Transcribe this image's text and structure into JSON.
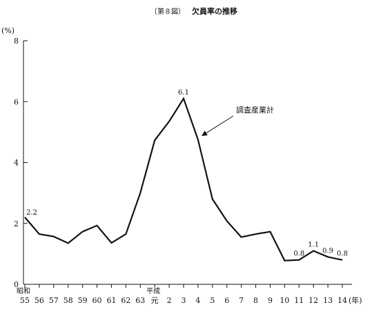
{
  "chart_data": {
    "type": "line",
    "figure_label": "〔第８図〕",
    "title": "欠員率の推移",
    "y_unit": "(%)",
    "x_unit": "(年)",
    "ylim": [
      0,
      8
    ],
    "y_ticks": [
      0,
      2,
      4,
      6,
      8
    ],
    "grid": false,
    "era_labels": [
      {
        "text": "昭和",
        "at": "55"
      },
      {
        "text": "平成",
        "at": "元"
      }
    ],
    "categories": [
      "55",
      "56",
      "57",
      "58",
      "59",
      "60",
      "61",
      "62",
      "63",
      "元",
      "2",
      "3",
      "4",
      "5",
      "6",
      "7",
      "8",
      "9",
      "10",
      "11",
      "12",
      "13",
      "14"
    ],
    "series": [
      {
        "name": "調査産業計",
        "values": [
          2.2,
          1.65,
          1.57,
          1.35,
          1.73,
          1.93,
          1.36,
          1.65,
          3.0,
          4.73,
          5.35,
          6.1,
          4.75,
          2.8,
          2.08,
          1.55,
          1.65,
          1.73,
          0.78,
          0.8,
          1.1,
          0.9,
          0.8
        ],
        "color": "#111111"
      }
    ],
    "data_labels": [
      {
        "index": 0,
        "text": "2.2"
      },
      {
        "index": 11,
        "text": "6.1"
      },
      {
        "index": 19,
        "text": "0.8"
      },
      {
        "index": 20,
        "text": "1.1"
      },
      {
        "index": 21,
        "text": "0.9"
      },
      {
        "index": 22,
        "text": "0.8"
      }
    ],
    "annotation": {
      "text": "調査産業計",
      "points_to_index": 12
    }
  }
}
